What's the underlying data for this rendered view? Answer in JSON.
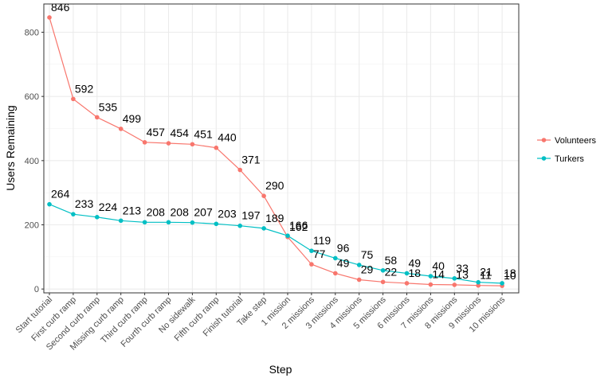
{
  "chart_data": {
    "type": "line",
    "xlabel": "Step",
    "ylabel": "Users Remaining",
    "categories": [
      "Start tutorial",
      "First curb ramp",
      "Second curb ramp",
      "Missing curb ramp",
      "Third curb ramp",
      "Fourth curb ramp",
      "No sidewalk",
      "Fifth curb ramp",
      "Finish tutorial",
      "Take step",
      "1 mission",
      "2 missions",
      "3 missions",
      "4 missions",
      "5 missions",
      "6 missions",
      "7 missions",
      "8 missions",
      "9 missions",
      "10 missions"
    ],
    "ylim": [
      -12,
      888
    ],
    "yticks": [
      0,
      200,
      400,
      600,
      800
    ],
    "grid": true,
    "legend_position": "right",
    "series": [
      {
        "name": "Volunteers",
        "color": "#F8766D",
        "values": [
          846,
          592,
          535,
          499,
          457,
          454,
          451,
          440,
          371,
          290,
          162,
          77,
          49,
          29,
          22,
          18,
          14,
          13,
          11,
          10
        ]
      },
      {
        "name": "Turkers",
        "color": "#00BFC4",
        "values": [
          264,
          233,
          224,
          213,
          208,
          208,
          207,
          203,
          197,
          189,
          166,
          119,
          96,
          75,
          58,
          49,
          40,
          33,
          21,
          18
        ]
      }
    ]
  }
}
